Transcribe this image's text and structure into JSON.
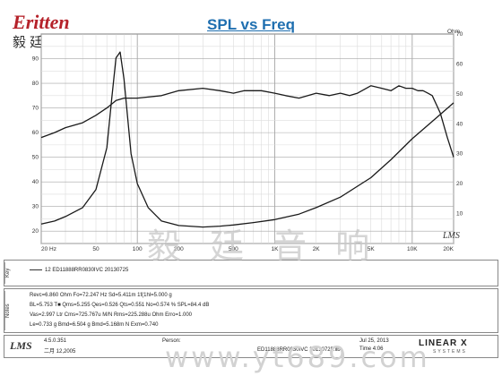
{
  "brand": {
    "name": "ritten",
    "cn_name": "毅廷音响"
  },
  "chart_data": {
    "type": "line",
    "title": "SPL vs Freq",
    "xscale": "log",
    "xlim": [
      20,
      20000
    ],
    "ylim_left": [
      15,
      100
    ],
    "ylim_right": [
      0,
      70
    ],
    "right_unit": "Ohm",
    "x_ticks": [
      "20 Hz",
      "50",
      "100",
      "200",
      "500",
      "1K",
      "2K",
      "5K",
      "10K",
      "20K"
    ],
    "x_tick_values": [
      20,
      50,
      100,
      200,
      500,
      1000,
      2000,
      5000,
      10000,
      20000
    ],
    "y_left_ticks": [
      20,
      30,
      40,
      50,
      60,
      70,
      80,
      90
    ],
    "y_right_ticks": [
      10,
      20,
      30,
      40,
      50,
      60,
      70
    ],
    "grid": true,
    "series": [
      {
        "name": "",
        "axis": "left",
        "x": [
          20,
          25,
          30,
          40,
          50,
          60,
          70,
          80,
          100,
          150,
          200,
          300,
          400,
          500,
          600,
          800,
          1000,
          1200,
          1500,
          2000,
          2500,
          3000,
          3500,
          4000,
          5000,
          6000,
          7000,
          8000,
          9000,
          10000,
          11000,
          12000,
          13000,
          14000,
          16000,
          18000,
          20000
        ],
        "values": [
          58,
          60,
          62,
          64,
          67,
          70,
          73,
          74,
          74,
          75,
          77,
          78,
          77,
          76,
          77,
          77,
          76,
          75,
          74,
          76,
          75,
          76,
          75,
          76,
          79,
          78,
          77,
          79,
          78,
          78,
          77,
          77,
          76,
          75,
          68,
          58,
          50
        ]
      },
      {
        "name": "",
        "axis": "right",
        "x": [
          20,
          25,
          30,
          40,
          50,
          60,
          65,
          70,
          75,
          80,
          90,
          100,
          120,
          150,
          200,
          300,
          400,
          500,
          700,
          1000,
          1500,
          2000,
          3000,
          5000,
          7000,
          10000,
          15000,
          20000
        ],
        "values": [
          6.5,
          7.5,
          9,
          12,
          18,
          32,
          48,
          62,
          64,
          55,
          30,
          20,
          12,
          7.5,
          6.0,
          5.5,
          5.8,
          6.2,
          7.0,
          8.0,
          9.8,
          12,
          15.5,
          22,
          28,
          35,
          42,
          47
        ]
      }
    ]
  },
  "lms_mark": "LMS",
  "info": {
    "rows": {
      "key": "Key",
      "notes": "Notes"
    },
    "legend_line": "12  ED11888RR0830IVC   20130725",
    "params": [
      "Revc=6.860 Ohm  Fo=72.247 Hz  Sd=5.411m 1f(1hl=5.000 g",
      "BL=5.753 T■  Qms=5.255  Qes=0.526  Qts=0.551  No=0.574 %  SPL=84.4 dB",
      "Vas=2.997 Ltr  Cms=725.767u M/N  Rms=225.288u Ohm  Erro=1.000",
      "Le=0.733 g  Bmd=6.504 g  Bmd=5.168m N  Exm=0.740"
    ],
    "footer": {
      "version": "4.5.0.351",
      "date": "二月 12,2005",
      "person_label": "Person:",
      "file": "ED11888RR0830IVC 20130725.lib",
      "stamp_date": "Jul 25, 2013",
      "stamp_time": "Time 4:06",
      "linear_logo": "LINEAR X",
      "linear_sub": "SYSTEMS"
    }
  },
  "watermark": "毅 廷 音 响",
  "url_watermark": "www.yt689.com"
}
